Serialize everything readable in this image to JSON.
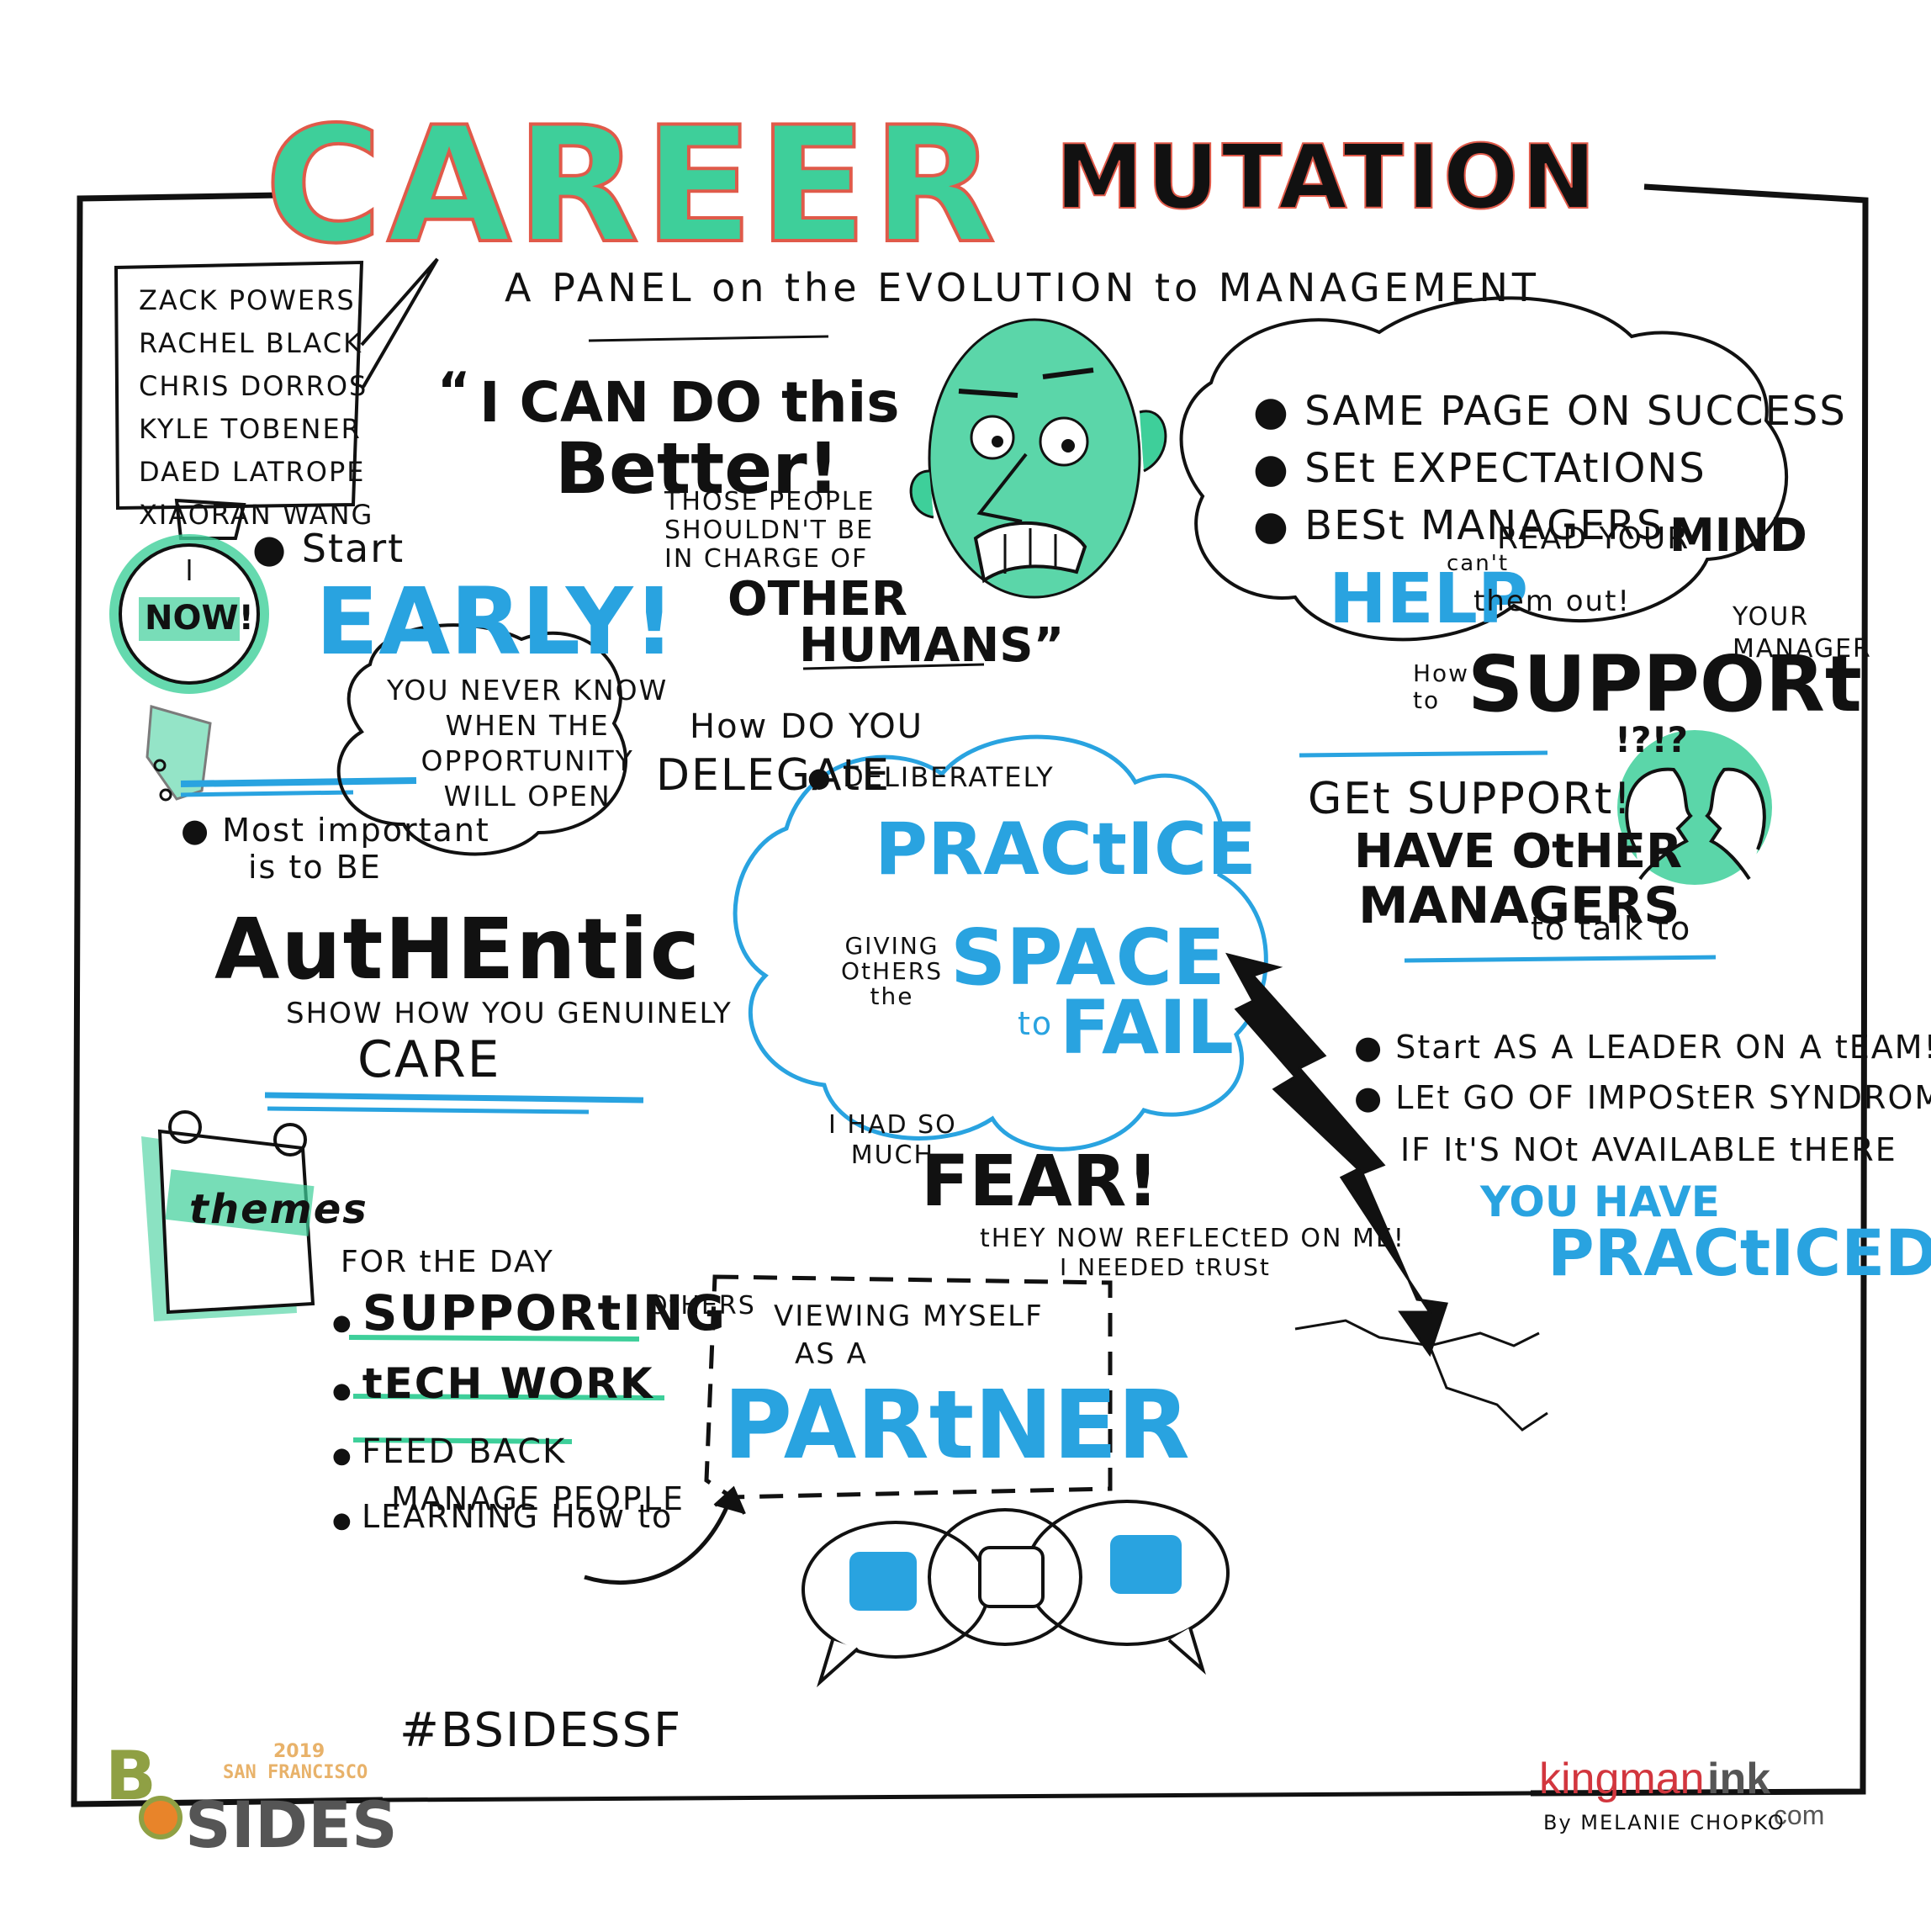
{
  "title": {
    "career": "CAREER",
    "mutation": "MUTATION",
    "subtitle": "A PANEL on the EVOLUTION to MANAGEMENT"
  },
  "panelists": [
    "ZACK POWERS",
    "RACHEL BLACK",
    "CHRIS DORROS",
    "KYLE TOBENER",
    "DAED LATROPE",
    "XIAORAN WANG"
  ],
  "watch": {
    "label": "NOW!"
  },
  "start_early": {
    "bullet": "Start",
    "big": "EARLY!",
    "bubble_lines": [
      "YOU NEVER KNOW",
      "WHEN THE",
      "OPPORTUNITY",
      "WILL OPEN"
    ]
  },
  "authentic": {
    "lead_lines": [
      "Most important",
      "is to BE"
    ],
    "big": "AutHEntic",
    "sub": "SHOW HOW YOU GENUINELY",
    "care": "CARE"
  },
  "better": {
    "quote_mark": "“",
    "line1": "I CAN DO this",
    "line2": "Better!",
    "small_lines": [
      "THOSE PEOPLE",
      "SHOULDN'T BE",
      "IN CHARGE OF"
    ],
    "other": "OTHER",
    "humans": "HUMANS”"
  },
  "cloud_right": {
    "items": [
      "SAME PAGE ON SUCCESS",
      "SEt EXPECTAtIONS",
      "BESt MANAGERS"
    ],
    "cant": "can't",
    "read": "READ YOUR",
    "mind": "MIND",
    "help": "HELP",
    "them_out": "them out!"
  },
  "support": {
    "how_to": [
      "How",
      "to"
    ],
    "big": "SUPPORt",
    "your_manager": [
      "YOUR",
      "MANAGER"
    ],
    "marks": "!?!?",
    "get_support": "GEt SUPPORt!",
    "have_other": "HAVE OtHER",
    "managers": "MANAGERS",
    "talk_to": "to talk to"
  },
  "delegate": {
    "question_lines": [
      "How DO YOU",
      "DELEGAtE"
    ],
    "deliberately": "DELIBERATELY",
    "practice": "PRACtICE",
    "giving_lines": [
      "GIVING",
      "OtHERS",
      "the"
    ],
    "space": "SPACE",
    "to": "to",
    "fail": "FAIL"
  },
  "fear": {
    "small_lines": [
      "I HAD SO",
      "MUCH"
    ],
    "big": "FEAR!"
  },
  "leader": {
    "items": [
      "Start AS A LEADER ON A tEAM!",
      "LEt GO OF IMPOStER SYNDROME"
    ],
    "if_line": "IF It'S NOt AVAILABLE tHERE",
    "you_have": "YOU HAVE",
    "practiced": "PRACtICED"
  },
  "themes": {
    "label": "themes",
    "for_the_day": "FOR tHE DAY",
    "items": [
      "SUPPORtING",
      "tECH WORK",
      "FEED BACK",
      "LEARNING How to"
    ],
    "others": "OtHERS",
    "manage_people": "MANAGE PEOPLE"
  },
  "partner": {
    "reflected": "tHEY NOW REFLECtED ON ME!",
    "trust": "I NEEDED tRUSt",
    "viewing": "VIEWING MYSELF",
    "as_a": "AS A",
    "big": "PARtNER"
  },
  "hashtag": "#BSIDESSF",
  "logo_bsides": {
    "year": "2019",
    "city": "SAN FRANCISCO",
    "b": "B",
    "sides": "SIDES"
  },
  "logo_kingman": {
    "kingman": "kingman",
    "ink": "ink",
    "com": ".com",
    "by": "By MELANIE CHOPKO"
  },
  "colors": {
    "green": "#3ecf9a",
    "blue": "#29a3e0",
    "ink": "#111111",
    "red": "#e05a4a"
  }
}
